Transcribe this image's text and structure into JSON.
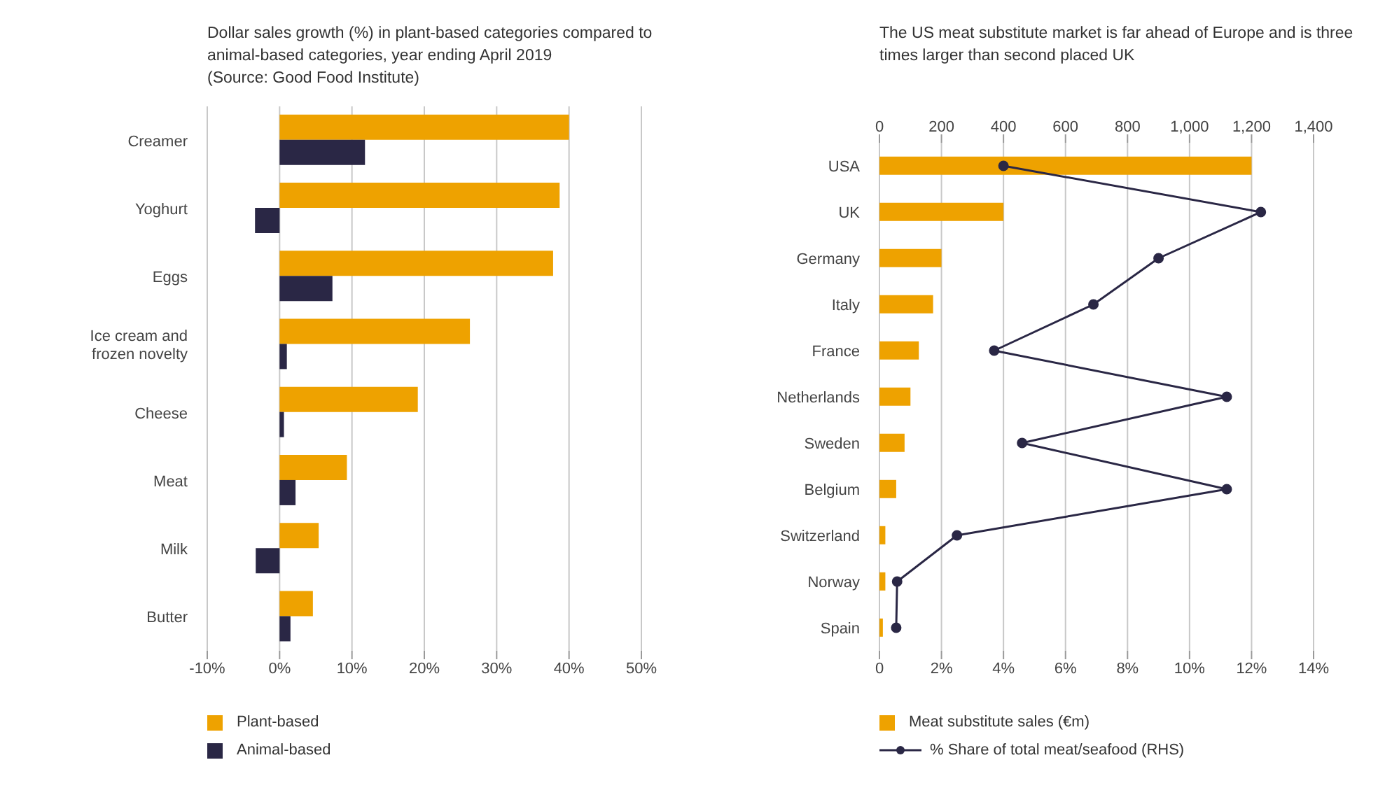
{
  "chart_data": [
    {
      "type": "bar",
      "orientation": "horizontal",
      "title": "Dollar sales growth (%) in plant-based categories compared to animal-based categories, year ending April 2019",
      "annotations": [
        "(Source: Good Food Institute)"
      ],
      "categories": [
        "Creamer",
        "Yoghurt",
        "Eggs",
        "Ice cream and frozen novelty",
        "Cheese",
        "Meat",
        "Milk",
        "Butter"
      ],
      "series": [
        {
          "name": "Plant-based",
          "color": "#eea200",
          "values": [
            40,
            38.7,
            37.8,
            26.3,
            19.1,
            9.3,
            5.4,
            4.6
          ]
        },
        {
          "name": "Animal-based",
          "color": "#2a2745",
          "values": [
            11.8,
            -3.4,
            7.3,
            1.0,
            0.6,
            2.2,
            -3.3,
            1.5
          ]
        }
      ],
      "xlim": [
        -10,
        50
      ],
      "xticks": [
        {
          "value": -10,
          "label": "-10%"
        },
        {
          "value": 0,
          "label": "0%"
        },
        {
          "value": 10,
          "label": "10%"
        },
        {
          "value": 20,
          "label": "20%"
        },
        {
          "value": 30,
          "label": "30%"
        },
        {
          "value": 40,
          "label": "40%"
        },
        {
          "value": 50,
          "label": "50%"
        }
      ],
      "grid": "x",
      "legend": "bottom"
    },
    {
      "type": "bar",
      "orientation": "horizontal",
      "title": "The US meat substitute market is far ahead of Europe and is three times larger than second placed UK",
      "categories": [
        "USA",
        "UK",
        "Germany",
        "Italy",
        "France",
        "Netherlands",
        "Sweden",
        "Belgium",
        "Switzerland",
        "Norway",
        "Spain"
      ],
      "series": [
        {
          "name": "Meat substitute sales (€m)",
          "color": "#eea200",
          "axis": "x2",
          "values": [
            1200,
            400,
            200,
            173,
            127,
            100,
            81,
            54,
            19,
            19,
            11
          ]
        },
        {
          "name": "% Share of total meat/seafood (RHS)",
          "color": "#2a2745",
          "type": "line",
          "marker": "circle",
          "values": [
            4.0,
            12.3,
            9.0,
            6.9,
            3.7,
            11.2,
            4.6,
            11.2,
            2.5,
            0.57,
            0.54
          ]
        }
      ],
      "x2lim": [
        0,
        1400
      ],
      "x2ticks": [
        0,
        200,
        400,
        600,
        800,
        {
          "value": 1000,
          "label": "1,000"
        },
        {
          "value": 1200,
          "label": "1,200"
        },
        {
          "value": 1400,
          "label": "1,400"
        }
      ],
      "xlim": [
        0,
        14
      ],
      "xticks": [
        0,
        {
          "value": 2,
          "label": "2%"
        },
        {
          "value": 4,
          "label": "4%"
        },
        {
          "value": 6,
          "label": "6%"
        },
        {
          "value": 8,
          "label": "8%"
        },
        {
          "value": 10,
          "label": "10%"
        },
        {
          "value": 12,
          "label": "12%"
        },
        {
          "value": 14,
          "label": "14%"
        }
      ],
      "grid": "x",
      "legend": "bottom"
    }
  ]
}
